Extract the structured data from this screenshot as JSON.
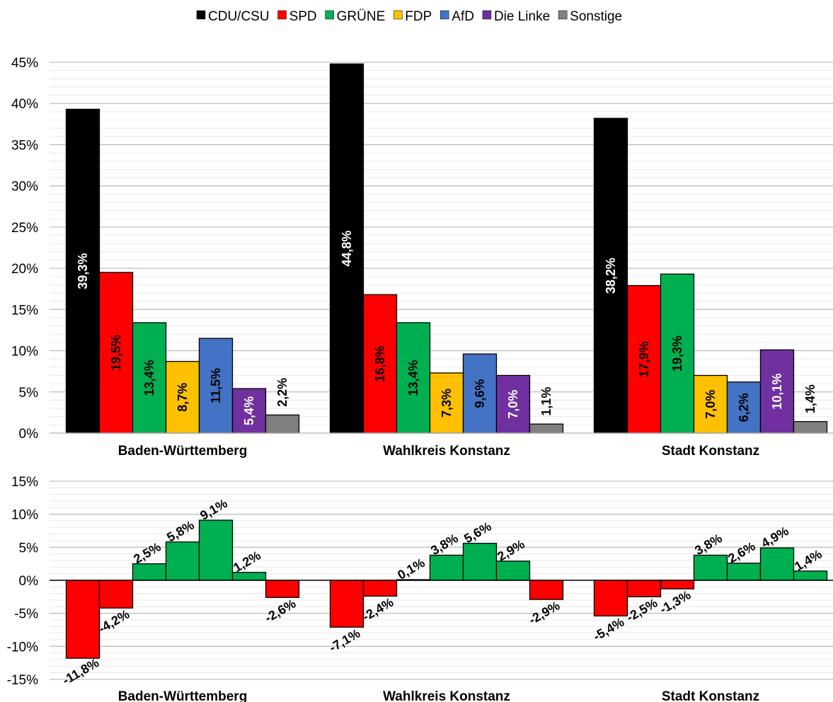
{
  "legend": [
    {
      "name": "CDU/CSU",
      "color": "#000000"
    },
    {
      "name": "SPD",
      "color": "#ff0000"
    },
    {
      "name": "GRÜNE",
      "color": "#00b050"
    },
    {
      "name": "FDP",
      "color": "#ffc000"
    },
    {
      "name": "AfD",
      "color": "#4472c4"
    },
    {
      "name": "Die Linke",
      "color": "#7030a0"
    },
    {
      "name": "Sonstige",
      "color": "#808080"
    }
  ],
  "chart_data": [
    {
      "type": "bar",
      "title": "",
      "categories": [
        "Baden-Württemberg",
        "Wahlkreis Konstanz",
        "Stadt Konstanz"
      ],
      "ylim": [
        0,
        45
      ],
      "yticks": [
        "0%",
        "5%",
        "10%",
        "15%",
        "20%",
        "25%",
        "30%",
        "35%",
        "40%",
        "45%"
      ],
      "grid": true,
      "legend_position": "top",
      "series": [
        {
          "name": "CDU/CSU",
          "color": "#000000",
          "values": [
            39.3,
            44.8,
            38.2
          ],
          "labels": [
            "39,3%",
            "44,8%",
            "38,2%"
          ]
        },
        {
          "name": "SPD",
          "color": "#ff0000",
          "values": [
            19.5,
            16.8,
            17.9
          ],
          "labels": [
            "19,5%",
            "16,8%",
            "17,9%"
          ]
        },
        {
          "name": "GRÜNE",
          "color": "#00b050",
          "values": [
            13.4,
            13.4,
            19.3
          ],
          "labels": [
            "13,4%",
            "13,4%",
            "19,3%"
          ]
        },
        {
          "name": "FDP",
          "color": "#ffc000",
          "values": [
            8.7,
            7.3,
            7.0
          ],
          "labels": [
            "8,7%",
            "7,3%",
            "7,0%"
          ]
        },
        {
          "name": "AfD",
          "color": "#4472c4",
          "values": [
            11.5,
            9.6,
            6.2
          ],
          "labels": [
            "11,5%",
            "9,6%",
            "6,2%"
          ]
        },
        {
          "name": "Die Linke",
          "color": "#7030a0",
          "values": [
            5.4,
            7.0,
            10.1
          ],
          "labels": [
            "5,4%",
            "7,0%",
            "10,1%"
          ]
        },
        {
          "name": "Sonstige",
          "color": "#808080",
          "values": [
            2.2,
            1.1,
            1.4
          ],
          "labels": [
            "2,2%",
            "1,1%",
            "1,4%"
          ]
        }
      ]
    },
    {
      "type": "bar",
      "title": "",
      "categories": [
        "Baden-Württemberg",
        "Wahlkreis Konstanz",
        "Stadt Konstanz"
      ],
      "ylim": [
        -15,
        15
      ],
      "yticks": [
        "-15%",
        "-10%",
        "-5%",
        "0%",
        "5%",
        "10%",
        "15%"
      ],
      "grid": true,
      "positive_color": "#00b050",
      "negative_color": "#ff0000",
      "series": [
        {
          "name": "CDU/CSU",
          "values": [
            -11.8,
            -7.1,
            -5.4
          ],
          "labels": [
            "-11,8%",
            "-7,1%",
            "-5,4%"
          ]
        },
        {
          "name": "SPD",
          "values": [
            -4.2,
            -2.4,
            -2.5
          ],
          "labels": [
            "-4,2%",
            "-2,4%",
            "-2,5%"
          ]
        },
        {
          "name": "GRÜNE",
          "values": [
            2.5,
            0.1,
            -1.3
          ],
          "labels": [
            "2,5%",
            "0,1%",
            "-1,3%"
          ]
        },
        {
          "name": "FDP",
          "values": [
            5.8,
            3.8,
            3.8
          ],
          "labels": [
            "5,8%",
            "3,8%",
            "3,8%"
          ]
        },
        {
          "name": "AfD",
          "values": [
            9.1,
            5.6,
            2.6
          ],
          "labels": [
            "9,1%",
            "5,6%",
            "2,6%"
          ]
        },
        {
          "name": "Die Linke",
          "values": [
            1.2,
            2.9,
            4.9
          ],
          "labels": [
            "1,2%",
            "2,9%",
            "4,9%"
          ]
        },
        {
          "name": "Sonstige",
          "values": [
            -2.6,
            -2.9,
            1.4
          ],
          "labels": [
            "-2,6%",
            "-2,9%",
            "1,4%"
          ]
        }
      ]
    }
  ]
}
